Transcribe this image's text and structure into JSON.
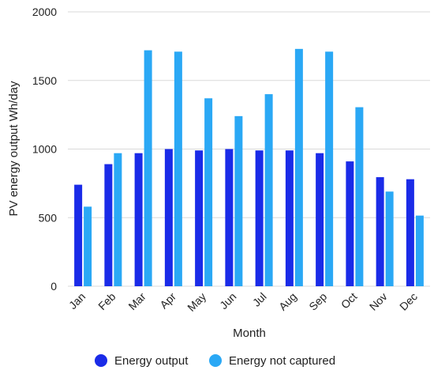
{
  "chart_data": {
    "type": "bar",
    "categories": [
      "Jan",
      "Feb",
      "Mar",
      "Apr",
      "May",
      "Jun",
      "Jul",
      "Aug",
      "Sep",
      "Oct",
      "Nov",
      "Dec"
    ],
    "series": [
      {
        "name": "Energy output",
        "color": "#1a2be8",
        "values": [
          740,
          890,
          970,
          1000,
          990,
          1000,
          990,
          990,
          970,
          910,
          795,
          780
        ]
      },
      {
        "name": "Energy not captured",
        "color": "#2aa8f5",
        "values": [
          580,
          970,
          1720,
          1710,
          1370,
          1240,
          1400,
          1730,
          1710,
          1305,
          690,
          515
        ]
      }
    ],
    "xlabel": "Month",
    "ylabel": "PV energy output Wh/day",
    "ylim": [
      0,
      2000
    ],
    "yticks": [
      "0",
      "500",
      "1000",
      "1500",
      "2000"
    ],
    "grid": "horizontal",
    "legend_position": "bottom"
  }
}
